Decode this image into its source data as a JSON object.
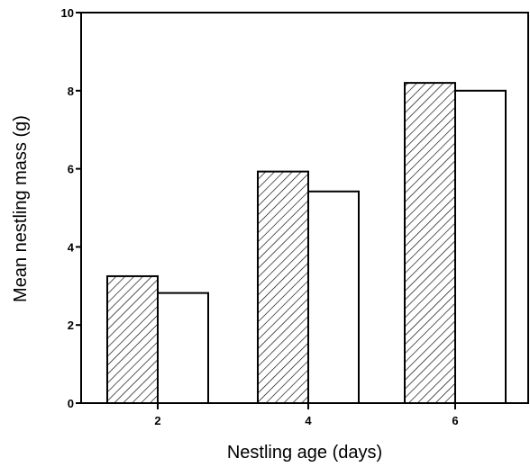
{
  "chart_data": {
    "type": "bar",
    "title": "",
    "xlabel": "Nestling age  (days)",
    "ylabel": "Mean nestling mass (g)",
    "categories": [
      "2",
      "4",
      "6"
    ],
    "series": [
      {
        "values": [
          3.25,
          5.93,
          8.2
        ],
        "pattern": "diagonal-hatch"
      },
      {
        "values": [
          2.82,
          5.42,
          8.0
        ],
        "pattern": "open"
      }
    ],
    "ylim": [
      0,
      10
    ],
    "yticks": [
      "0",
      "2",
      "4",
      "6",
      "8",
      "10"
    ],
    "grid": false,
    "legend": "none",
    "colors": {
      "stroke": "#000000",
      "fill_open": "#ffffff",
      "hatch": "#000000"
    }
  }
}
